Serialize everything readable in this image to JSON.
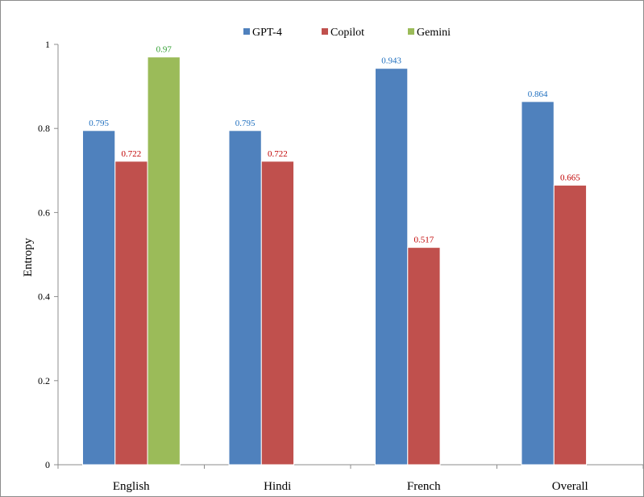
{
  "chart_data": {
    "type": "bar",
    "title": "",
    "xlabel": "",
    "ylabel": "Entropy",
    "ylim": [
      0,
      1
    ],
    "yticks": [
      0,
      0.2,
      0.4,
      0.6,
      0.8,
      1
    ],
    "ytick_labels": [
      "0",
      "0.2",
      "0.4",
      "0.6",
      "0.8",
      "1"
    ],
    "categories": [
      "English",
      "Hindi",
      "French",
      "Overall"
    ],
    "series": [
      {
        "name": "GPT-4",
        "color": "#4f81bd",
        "label_color": "#1f6fbf",
        "values": [
          0.795,
          0.795,
          0.943,
          0.864
        ],
        "labels": [
          "0.795",
          "0.795",
          "0.943",
          "0.864"
        ]
      },
      {
        "name": "Copilot",
        "color": "#c0504d",
        "label_color": "#c00000",
        "values": [
          0.722,
          0.722,
          0.517,
          0.665
        ],
        "labels": [
          "0.722",
          "0.722",
          "0.517",
          "0.665"
        ]
      },
      {
        "name": "Gemini",
        "color": "#9bbb59",
        "label_color": "#2e9e2e",
        "values": [
          0.97,
          null,
          null,
          null
        ],
        "labels": [
          "0.97",
          null,
          null,
          null
        ]
      }
    ],
    "legend": "top",
    "grid": false
  }
}
